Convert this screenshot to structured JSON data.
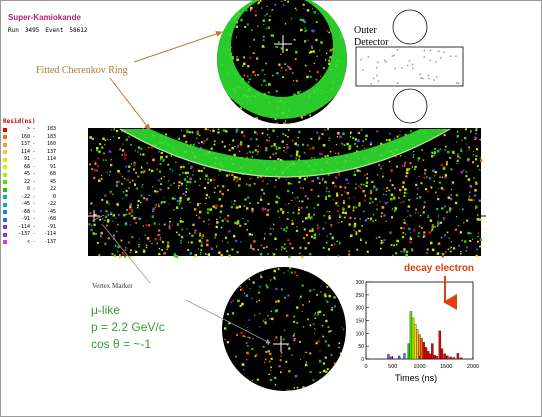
{
  "header": {
    "title": "Super-Kamiokande",
    "run_label": "Run",
    "run_value": "3495",
    "event_label": "Event",
    "event_value": "58612"
  },
  "callouts": {
    "fitted_ring": "Fitted Cherenkov Ring",
    "outer_detector": [
      "Outer",
      "Detector"
    ],
    "vertex_marker": "Vertex Marker",
    "decay_electron": "decay electron"
  },
  "event_info": {
    "line1": "μ-like",
    "line2": "p = 2.2 GeV/c",
    "line3": "cos θ = ~-1"
  },
  "legend": {
    "title": "Resid(ns)",
    "rows": [
      {
        "lo": ">",
        "hi": "183",
        "color": "#e80000"
      },
      {
        "lo": "160",
        "hi": "183",
        "color": "#ff6a00"
      },
      {
        "lo": "137",
        "hi": "160",
        "color": "#ff9a20"
      },
      {
        "lo": "114",
        "hi": "137",
        "color": "#ffc040"
      },
      {
        "lo": "91",
        "hi": "114",
        "color": "#f0e000"
      },
      {
        "lo": "68",
        "hi": "91",
        "color": "#d8f000"
      },
      {
        "lo": "45",
        "hi": "68",
        "color": "#a8f000"
      },
      {
        "lo": "22",
        "hi": "45",
        "color": "#60e000"
      },
      {
        "lo": "0",
        "hi": "22",
        "color": "#20c800"
      },
      {
        "lo": "-22",
        "hi": "0",
        "color": "#00c080"
      },
      {
        "lo": "-45",
        "hi": "-22",
        "color": "#00b0c0"
      },
      {
        "lo": "-68",
        "hi": "-45",
        "color": "#0090e0"
      },
      {
        "lo": "-91",
        "hi": "-68",
        "color": "#3060f0"
      },
      {
        "lo": "-114",
        "hi": "-91",
        "color": "#7040e0"
      },
      {
        "lo": "-137",
        "hi": "-114",
        "color": "#a030d0"
      },
      {
        "lo": "<",
        "hi": "-137",
        "color": "#d040d0"
      }
    ]
  },
  "histogram": {
    "xlabel": "Times (ns)",
    "x_ticks": [
      "0",
      "500",
      "1000",
      "1500",
      "2000"
    ],
    "y_ticks": [
      "0",
      "50",
      "100",
      "150",
      "200",
      "250",
      "300"
    ],
    "xlim": [
      0,
      2000
    ],
    "ylim": [
      0,
      300
    ],
    "bins": [
      {
        "t": 400,
        "h": 18,
        "color": "#a040c0"
      },
      {
        "t": 450,
        "h": 8,
        "color": "#a040c0"
      },
      {
        "t": 600,
        "h": 12,
        "color": "#4060e0"
      },
      {
        "t": 700,
        "h": 22,
        "color": "#20a0d0"
      },
      {
        "t": 780,
        "h": 60,
        "color": "#20c800"
      },
      {
        "t": 820,
        "h": 185,
        "color": "#60e000"
      },
      {
        "t": 860,
        "h": 160,
        "color": "#a8f000"
      },
      {
        "t": 900,
        "h": 135,
        "color": "#f0e000"
      },
      {
        "t": 940,
        "h": 115,
        "color": "#ffc040"
      },
      {
        "t": 980,
        "h": 95,
        "color": "#ff9a20"
      },
      {
        "t": 1020,
        "h": 80,
        "color": "#ff6a00"
      },
      {
        "t": 1060,
        "h": 65,
        "color": "#e80000"
      },
      {
        "t": 1100,
        "h": 45,
        "color": "#e80000"
      },
      {
        "t": 1140,
        "h": 30,
        "color": "#e80000"
      },
      {
        "t": 1180,
        "h": 20,
        "color": "#e80000"
      },
      {
        "t": 1220,
        "h": 60,
        "color": "#e80000"
      },
      {
        "t": 1260,
        "h": 15,
        "color": "#e80000"
      },
      {
        "t": 1300,
        "h": 10,
        "color": "#e80000"
      },
      {
        "t": 1360,
        "h": 110,
        "color": "#e80000"
      },
      {
        "t": 1400,
        "h": 40,
        "color": "#e80000"
      },
      {
        "t": 1450,
        "h": 20,
        "color": "#e80000"
      },
      {
        "t": 1500,
        "h": 12,
        "color": "#e80000"
      },
      {
        "t": 1560,
        "h": 8,
        "color": "#e80000"
      },
      {
        "t": 1620,
        "h": 6,
        "color": "#e80000"
      },
      {
        "t": 1700,
        "h": 22,
        "color": "#e80000"
      },
      {
        "t": 1760,
        "h": 5,
        "color": "#e80000"
      }
    ]
  }
}
